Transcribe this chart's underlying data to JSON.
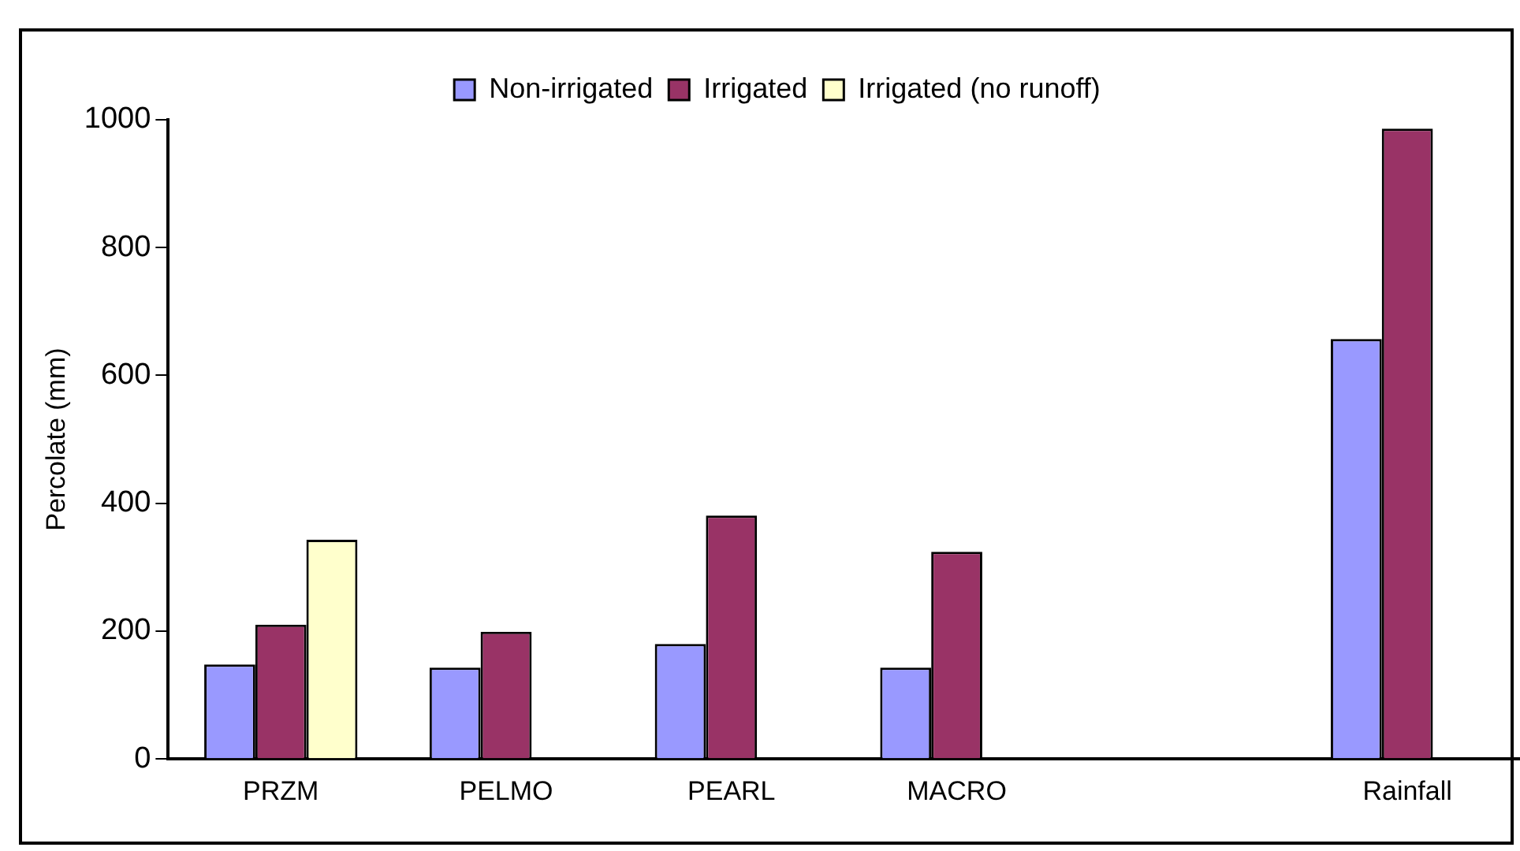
{
  "chart_data": {
    "type": "bar",
    "ylabel": "Percolate (mm)",
    "categories": [
      "PRZM",
      "PELMO",
      "PEARL",
      "MACRO",
      null,
      "Rainfall"
    ],
    "series": [
      {
        "name": "Non-irrigated",
        "color": "#9999ff",
        "values": [
          148,
          143,
          180,
          143,
          null,
          657
        ]
      },
      {
        "name": "Irrigated",
        "color": "#993366",
        "values": [
          210,
          199,
          381,
          324,
          null,
          986
        ]
      },
      {
        "name": "Irrigated (no runoff)",
        "color": "#ffffcc",
        "values": [
          343,
          null,
          null,
          null,
          null,
          null
        ]
      }
    ],
    "ylim": [
      0,
      1000
    ],
    "yticks": [
      0,
      200,
      400,
      600,
      800,
      1000
    ],
    "grid": false,
    "legend": "top"
  }
}
